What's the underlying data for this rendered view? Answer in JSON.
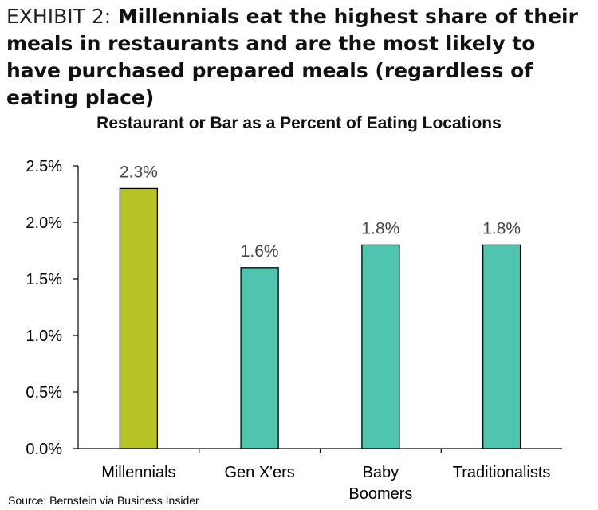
{
  "headline": {
    "exhibit": "EXHIBIT 2:",
    "text": "Millennials eat the highest share of their meals in restaurants and are the most likely to have purchased prepared meals (regardless of eating place)"
  },
  "source": "Source: Bernstein via Business Insider",
  "colors": {
    "highlight": "#b5c424",
    "bar": "#4fc4ae",
    "axis": "#000000"
  },
  "chart_data": {
    "type": "bar",
    "title": "Restaurant or Bar as a Percent of Eating Locations",
    "xlabel": "",
    "ylabel": "",
    "categories": [
      [
        "Millennials"
      ],
      [
        "Gen X'ers"
      ],
      [
        "Baby",
        "Boomers"
      ],
      [
        "Traditionalists"
      ]
    ],
    "values": [
      2.3,
      1.6,
      1.8,
      1.8
    ],
    "data_labels": [
      "2.3%",
      "1.6%",
      "1.8%",
      "1.8%"
    ],
    "highlight_index": 0,
    "ylim": [
      0,
      2.5
    ],
    "yticks": [
      0,
      0.5,
      1.0,
      1.5,
      2.0,
      2.5
    ],
    "ytick_labels": [
      "0.0%",
      "0.5%",
      "1.0%",
      "1.5%",
      "2.0%",
      "2.5%"
    ],
    "grid": false,
    "legend": "none"
  }
}
